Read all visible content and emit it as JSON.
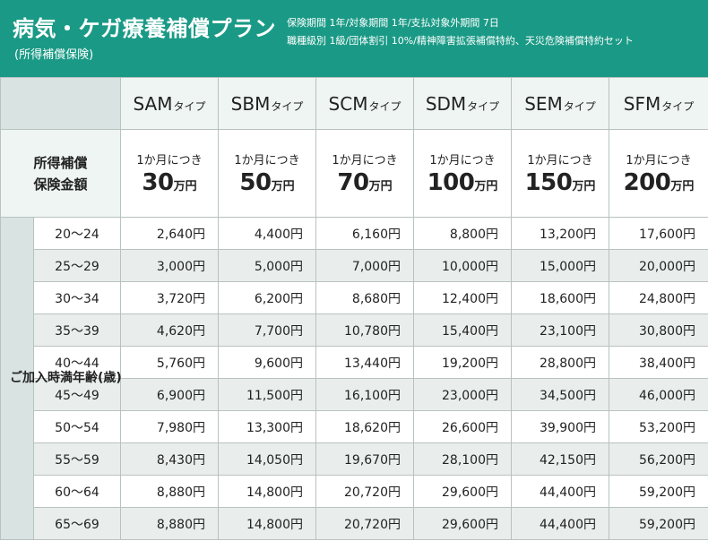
{
  "header": {
    "title": "病気・ケガ療養補償プラン",
    "subtitle": "(所得補償保険)",
    "info_line1": "保険期間 1年/対象期間 1年/支払対象外期間 7日",
    "info_line2": "職種級別 1級/団体割引 10%/精神障害拡張補償特約、天災危険補償特約セット"
  },
  "table": {
    "plans": [
      {
        "code": "SAM",
        "suffix": "タイプ"
      },
      {
        "code": "SBM",
        "suffix": "タイプ"
      },
      {
        "code": "SCM",
        "suffix": "タイプ"
      },
      {
        "code": "SDM",
        "suffix": "タイプ"
      },
      {
        "code": "SEM",
        "suffix": "タイプ"
      },
      {
        "code": "SFM",
        "suffix": "タイプ"
      }
    ],
    "amount_label_line1": "所得補償",
    "amount_label_line2": "保険金額",
    "per_month": "1か月につき",
    "unit": "万円",
    "amounts": [
      "30",
      "50",
      "70",
      "100",
      "150",
      "200"
    ],
    "age_header": "ご加入時満年齢(歳)",
    "rows": [
      {
        "age": "20〜24",
        "prices": [
          "2,640円",
          "4,400円",
          "6,160円",
          "8,800円",
          "13,200円",
          "17,600円"
        ]
      },
      {
        "age": "25〜29",
        "prices": [
          "3,000円",
          "5,000円",
          "7,000円",
          "10,000円",
          "15,000円",
          "20,000円"
        ]
      },
      {
        "age": "30〜34",
        "prices": [
          "3,720円",
          "6,200円",
          "8,680円",
          "12,400円",
          "18,600円",
          "24,800円"
        ]
      },
      {
        "age": "35〜39",
        "prices": [
          "4,620円",
          "7,700円",
          "10,780円",
          "15,400円",
          "23,100円",
          "30,800円"
        ]
      },
      {
        "age": "40〜44",
        "prices": [
          "5,760円",
          "9,600円",
          "13,440円",
          "19,200円",
          "28,800円",
          "38,400円"
        ]
      },
      {
        "age": "45〜49",
        "prices": [
          "6,900円",
          "11,500円",
          "16,100円",
          "23,000円",
          "34,500円",
          "46,000円"
        ]
      },
      {
        "age": "50〜54",
        "prices": [
          "7,980円",
          "13,300円",
          "18,620円",
          "26,600円",
          "39,900円",
          "53,200円"
        ]
      },
      {
        "age": "55〜59",
        "prices": [
          "8,430円",
          "14,050円",
          "19,670円",
          "28,100円",
          "42,150円",
          "56,200円"
        ]
      },
      {
        "age": "60〜64",
        "prices": [
          "8,880円",
          "14,800円",
          "20,720円",
          "29,600円",
          "44,400円",
          "59,200円"
        ]
      },
      {
        "age": "65〜69",
        "prices": [
          "8,880円",
          "14,800円",
          "20,720円",
          "29,600円",
          "44,400円",
          "59,200円"
        ]
      }
    ]
  }
}
